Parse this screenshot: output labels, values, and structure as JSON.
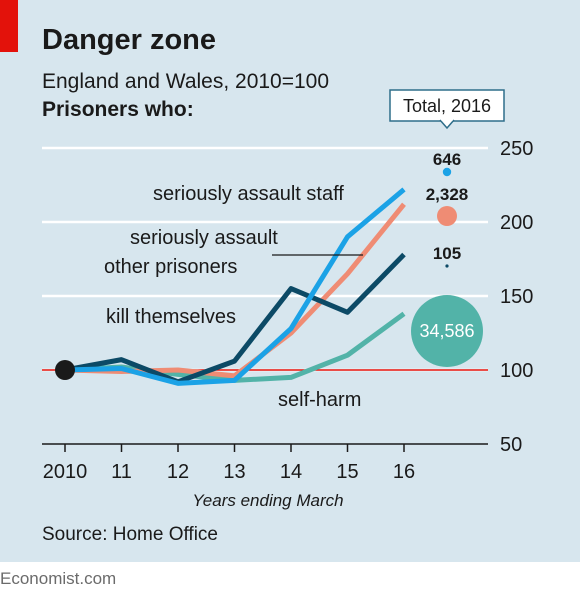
{
  "header": {
    "title": "Danger zone",
    "subtitle": "England and Wales, 2010=100",
    "subtitle2": "Prisoners who:"
  },
  "footer": {
    "source": "Source: Home Office",
    "brand": "Economist.com"
  },
  "colors": {
    "panel": "#d7e6ee",
    "assault_staff": "#1ba2e6",
    "assault_prisoners": "#ef8c74",
    "kill_themselves": "#0c4a66",
    "self_harm": "#52b3a8",
    "baseline": "#e3120b",
    "grid": "#ffffff"
  },
  "chart_data": {
    "type": "line",
    "x": [
      2010,
      2011,
      2012,
      2013,
      2014,
      2015,
      2016
    ],
    "xticks": [
      "2010",
      "11",
      "12",
      "13",
      "14",
      "15",
      "16"
    ],
    "xlabel": "Years ending March",
    "ylim": [
      50,
      250
    ],
    "yticks": [
      50,
      100,
      150,
      200,
      250
    ],
    "baseline": 100,
    "series": [
      {
        "name": "seriously assault staff",
        "color": "#1ba2e6",
        "values": [
          100,
          101,
          91,
          93,
          128,
          190,
          222
        ]
      },
      {
        "name": "seriously assault other prisoners",
        "color": "#ef8c74",
        "values": [
          100,
          99,
          100,
          96,
          125,
          165,
          212
        ]
      },
      {
        "name": "kill themselves",
        "color": "#0c4a66",
        "values": [
          100,
          107,
          92,
          106,
          155,
          139,
          178
        ]
      },
      {
        "name": "self-harm",
        "color": "#52b3a8",
        "values": [
          100,
          102,
          97,
          93,
          95,
          110,
          138
        ]
      }
    ],
    "totals_label": "Total, 2016",
    "totals": [
      {
        "value": "646",
        "series": "seriously assault staff",
        "color": "#1ba2e6"
      },
      {
        "value": "2,328",
        "series": "seriously assault other prisoners",
        "color": "#ef8c74"
      },
      {
        "value": "105",
        "series": "kill themselves",
        "color": "#0c4a66"
      },
      {
        "value": "34,586",
        "series": "self-harm",
        "color": "#52b3a8"
      }
    ]
  }
}
